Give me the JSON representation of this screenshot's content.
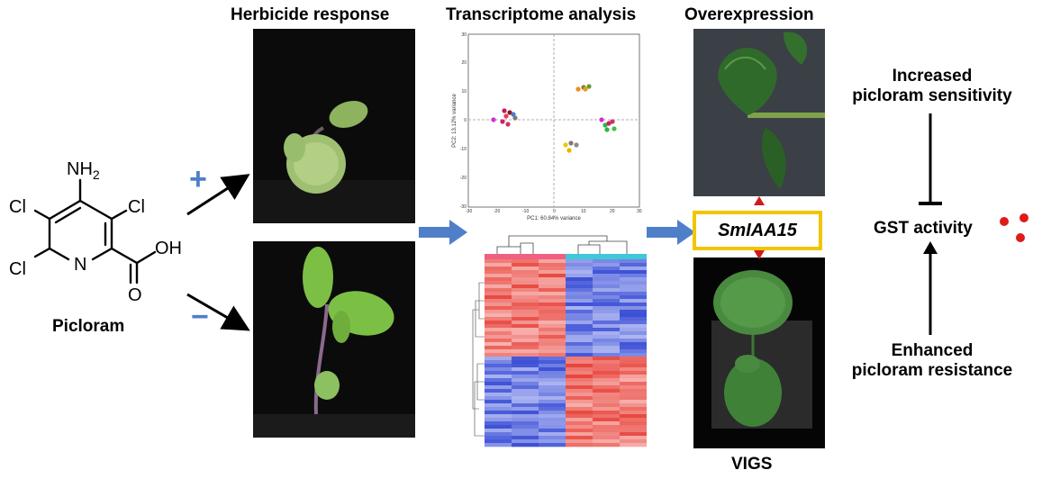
{
  "headers": {
    "herbicide": "Herbicide response",
    "transcriptome": "Transcriptome analysis",
    "overexpression": "Overexpression",
    "vigs": "VIGS"
  },
  "molecule": {
    "name": "Picloram",
    "atoms": {
      "nh2": "NH",
      "nh2_sub": "2",
      "cl1": "Cl",
      "cl2": "Cl",
      "cl3": "Cl",
      "n": "N",
      "o": "O",
      "oh": "OH"
    }
  },
  "treatment": {
    "plus": "+",
    "minus": "−"
  },
  "pca": {
    "xlabel": "PC1: 60.84% variance",
    "ylabel": "PC2: 13.12% variance",
    "x_ticks": [
      "-30",
      "-20",
      "-10",
      "0",
      "10",
      "20",
      "30"
    ],
    "y_ticks": [
      "30",
      "20",
      "10",
      "0",
      "-10",
      "-20",
      "-30"
    ]
  },
  "gene": "SmIAA15",
  "right": {
    "increased_line1": "Increased",
    "increased_line2": "picloram sensitivity",
    "gst": "GST activity",
    "enhanced_line1": "Enhanced",
    "enhanced_line2": "picloram resistance"
  },
  "colors": {
    "blue_arrow": "#4f7fc9",
    "gene_box_border": "#f2c500",
    "red_accent": "#d11a1a",
    "heatmap_red": "#e8453c",
    "heatmap_blue": "#3b4fd6",
    "cyan_bar": "#3ec8d8",
    "pink_bar": "#f06080"
  }
}
